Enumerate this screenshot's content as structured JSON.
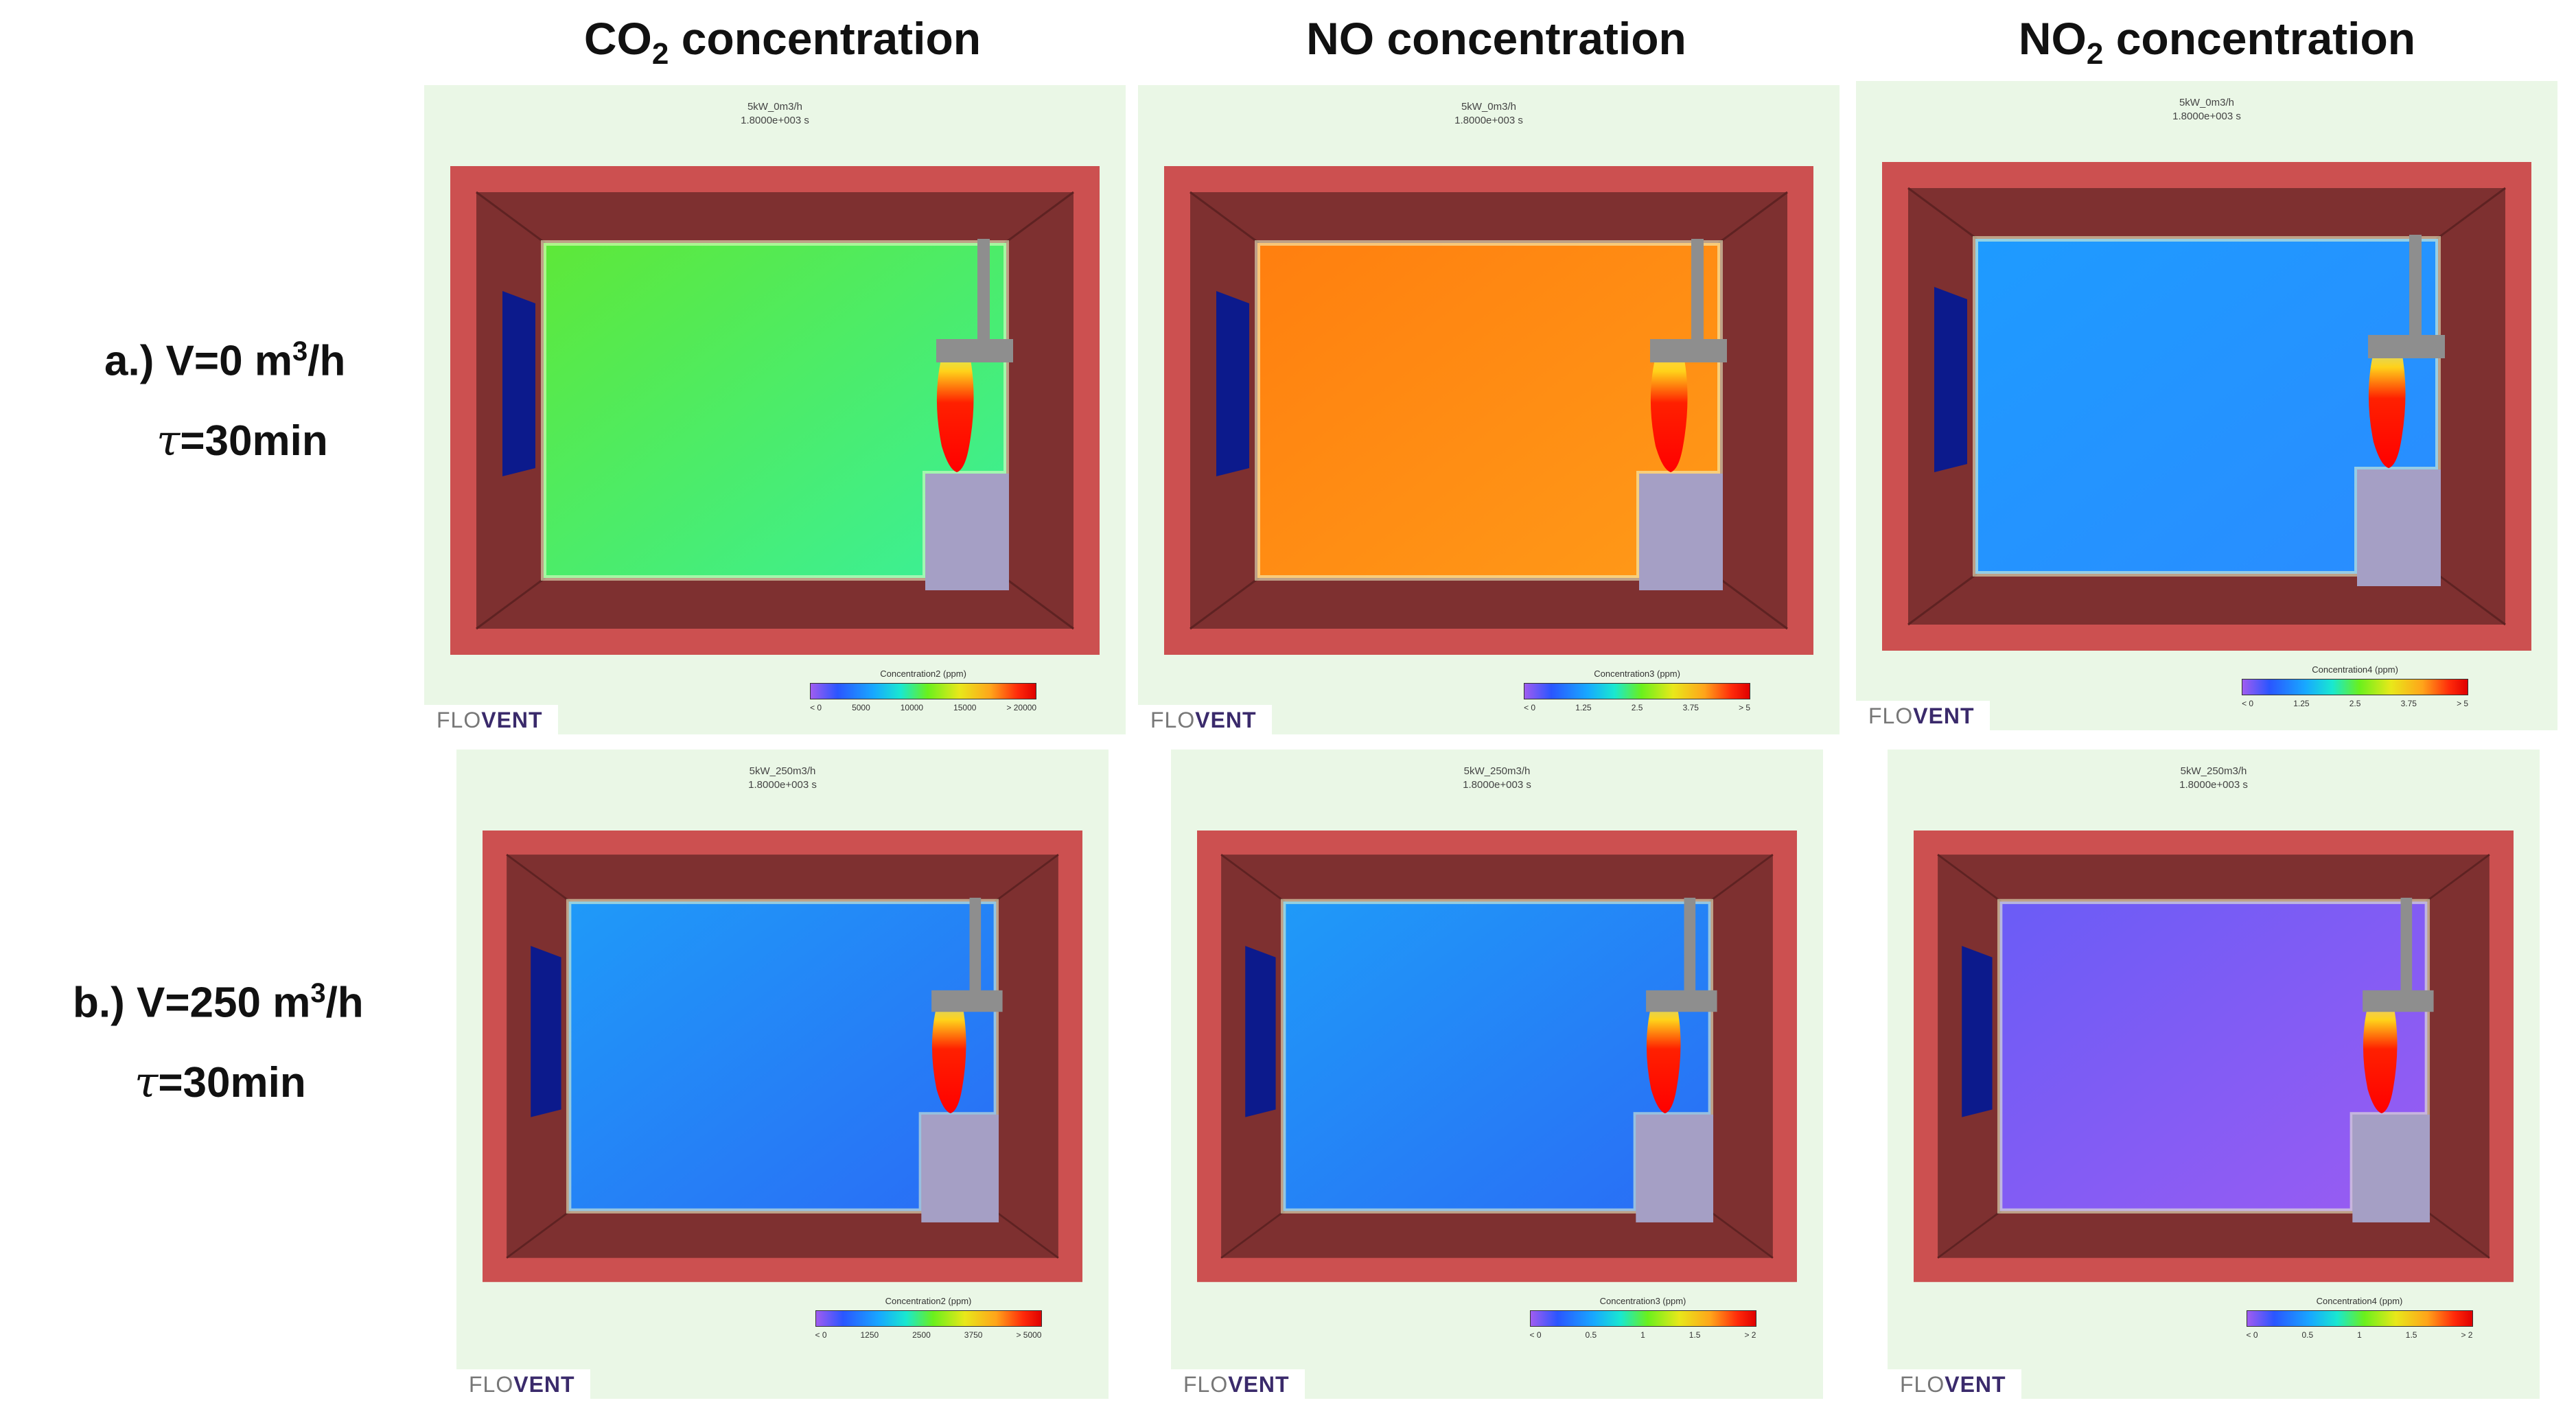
{
  "columns": [
    {
      "prefix": "CO",
      "sub": "2",
      "suffix": " concentration"
    },
    {
      "prefix": "NO",
      "sub": "",
      "suffix": " concentration"
    },
    {
      "prefix": "NO",
      "sub": "2",
      "suffix": " concentration"
    }
  ],
  "rows": [
    {
      "line1_main": "a.) V=0 m",
      "line1_sup": "3",
      "line1_end": "/h",
      "tau_symbol": "τ",
      "tau_text": "=30min"
    },
    {
      "line1_main": "b.) V=250 m",
      "line1_sup": "3",
      "line1_end": "/h",
      "tau_symbol": "τ",
      "tau_text": "=30min"
    }
  ],
  "panels": [
    {
      "title1": "5kW_0m3/h",
      "title2": "1.8000e+003 s",
      "legend_title": "Concentration2 (ppm)",
      "ticks": [
        "< 0",
        "5000",
        "10000",
        "15000",
        "> 20000"
      ],
      "brand_flo": "FLO",
      "brand_vent": "VENT",
      "interior": "#5ee838",
      "tint_from": "#3af09a"
    },
    {
      "title1": "5kW_0m3/h",
      "title2": "1.8000e+003 s",
      "legend_title": "Concentration3 (ppm)",
      "ticks": [
        "< 0",
        "1.25",
        "2.5",
        "3.75",
        "> 5"
      ],
      "brand_flo": "FLO",
      "brand_vent": "VENT",
      "interior": "#ff7f0f",
      "tint_from": "#ff9a18"
    },
    {
      "title1": "5kW_0m3/h",
      "title2": "1.8000e+003 s",
      "legend_title": "Concentration4 (ppm)",
      "ticks": [
        "< 0",
        "1.25",
        "2.5",
        "3.75",
        "> 5"
      ],
      "brand_flo": "FLO",
      "brand_vent": "VENT",
      "interior": "#1e9bff",
      "tint_from": "#2a8cff"
    },
    {
      "title1": "5kW_250m3/h",
      "title2": "1.8000e+003 s",
      "legend_title": "Concentration2 (ppm)",
      "ticks": [
        "< 0",
        "1250",
        "2500",
        "3750",
        "> 5000"
      ],
      "brand_flo": "FLO",
      "brand_vent": "VENT",
      "interior": "#1f9af8",
      "tint_from": "#2a6cf5"
    },
    {
      "title1": "5kW_250m3/h",
      "title2": "1.8000e+003 s",
      "legend_title": "Concentration3 (ppm)",
      "ticks": [
        "< 0",
        "0.5",
        "1",
        "1.5",
        "> 2"
      ],
      "brand_flo": "FLO",
      "brand_vent": "VENT",
      "interior": "#1f9af8",
      "tint_from": "#2a6cf5"
    },
    {
      "title1": "5kW_250m3/h",
      "title2": "1.8000e+003 s",
      "legend_title": "Concentration4 (ppm)",
      "ticks": [
        "< 0",
        "0.5",
        "1",
        "1.5",
        "> 2"
      ],
      "brand_flo": "FLO",
      "brand_vent": "VENT",
      "interior": "#6a5cf6",
      "tint_from": "#9a5cf2"
    }
  ],
  "colors": {
    "outer_wall": "#cc5050",
    "inner_wall": "#7e3030",
    "window": "#0c1a8c",
    "heater": "#a59fc5",
    "hood": "#8e8e8e",
    "panel_bg": "#eaf7e6"
  }
}
